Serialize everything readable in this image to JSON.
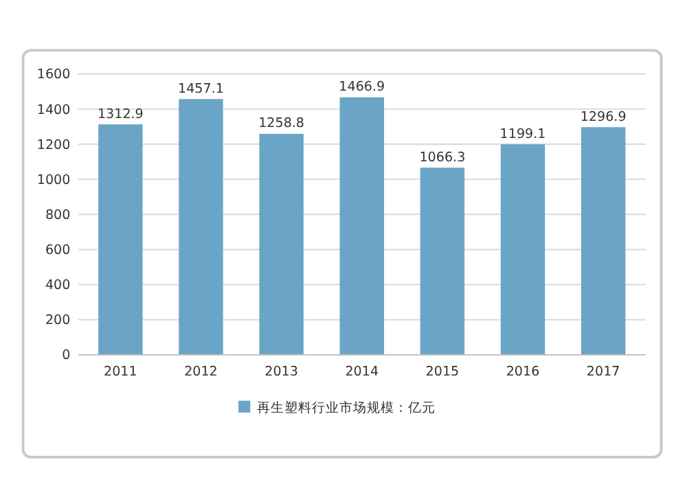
{
  "chart_data": {
    "type": "bar",
    "categories": [
      "2011",
      "2012",
      "2013",
      "2014",
      "2015",
      "2016",
      "2017"
    ],
    "series": [
      {
        "name": "再生塑料行业市场规模：亿元",
        "color": "#6aa5c8",
        "values": [
          1312.9,
          1457.1,
          1258.8,
          1466.9,
          1066.3,
          1199.1,
          1296.9
        ]
      }
    ],
    "ylim": [
      0,
      1600
    ],
    "yticks": [
      0,
      200,
      400,
      600,
      800,
      1000,
      1200,
      1400,
      1600
    ],
    "grid": "y",
    "legend": "bottom",
    "data_labels": true
  }
}
